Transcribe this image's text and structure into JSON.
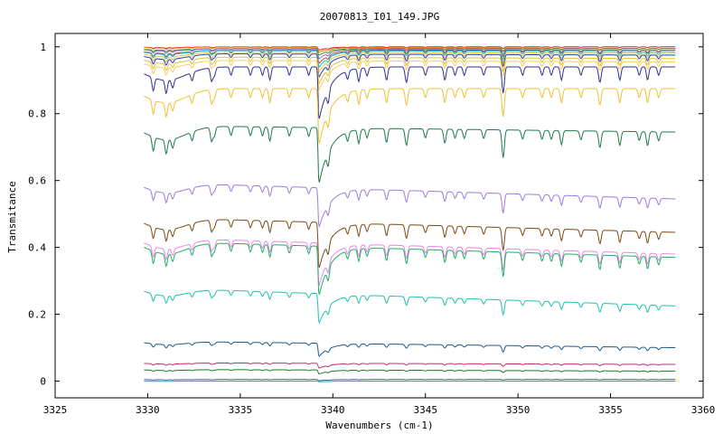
{
  "chart_data": {
    "type": "line",
    "title": "20070813_I01_149.JPG",
    "xlabel": "Wavenumbers (cm-1)",
    "ylabel": "Transmitance",
    "xlim": [
      3325,
      3360
    ],
    "ylim": [
      -0.05,
      1.04
    ],
    "xticks": [
      "3325",
      "3330",
      "3335",
      "3340",
      "3345",
      "3350",
      "3355",
      "3360"
    ],
    "yticks": [
      "0",
      "0.2",
      "0.4",
      "0.6",
      "0.8",
      "1"
    ],
    "grid": false,
    "x_range_data": [
      3329.8,
      3358.5
    ],
    "series": [
      {
        "color": "#d62728",
        "start": 1.0,
        "end": 1.0,
        "dip": 0.01
      },
      {
        "color": "#ff7f0e",
        "start": 1.0,
        "end": 0.995,
        "dip": 0.015
      },
      {
        "color": "#2ca02c",
        "start": 0.995,
        "end": 0.995,
        "dip": 0.02
      },
      {
        "color": "#9467bd",
        "start": 0.995,
        "end": 0.99,
        "dip": 0.03
      },
      {
        "color": "#8c564b",
        "start": 0.99,
        "end": 0.99,
        "dip": 0.04
      },
      {
        "color": "#17becf",
        "start": 0.99,
        "end": 0.985,
        "dip": 0.05
      },
      {
        "color": "#f0c040",
        "start": 0.985,
        "end": 0.98,
        "dip": 0.06
      },
      {
        "color": "#2040c0",
        "start": 0.98,
        "end": 0.975,
        "dip": 0.07
      },
      {
        "color": "#e8c030",
        "start": 0.97,
        "end": 0.965,
        "dip": 0.08
      },
      {
        "color": "#f5d060",
        "start": 0.96,
        "end": 0.955,
        "dip": 0.09
      },
      {
        "color": "#303090",
        "start": 0.94,
        "end": 0.94,
        "dip": 0.16
      },
      {
        "color": "#f0c030",
        "start": 0.875,
        "end": 0.875,
        "dip": 0.17
      },
      {
        "color": "#1a7a4a",
        "start": 0.765,
        "end": 0.745,
        "dip": 0.17
      },
      {
        "color": "#9b7ae0",
        "start": 0.595,
        "end": 0.545,
        "dip": 0.12
      },
      {
        "color": "#7a4a10",
        "start": 0.49,
        "end": 0.445,
        "dip": 0.14
      },
      {
        "color": "#ee82ee",
        "start": 0.43,
        "end": 0.38,
        "dip": 0.13
      },
      {
        "color": "#20b060",
        "start": 0.42,
        "end": 0.37,
        "dip": 0.15
      },
      {
        "color": "#20c0b0",
        "start": 0.28,
        "end": 0.225,
        "dip": 0.09
      },
      {
        "color": "#1a5a8a",
        "start": 0.12,
        "end": 0.1,
        "dip": 0.04
      },
      {
        "color": "#c03070",
        "start": 0.055,
        "end": 0.05,
        "dip": 0.015
      },
      {
        "color": "#1a7a2a",
        "start": 0.035,
        "end": 0.03,
        "dip": 0.012
      },
      {
        "color": "#3060c0",
        "start": 0.005,
        "end": 0.005,
        "dip": 0.004
      },
      {
        "color": "#20b0a0",
        "start": 0.0,
        "end": 0.0,
        "dip": 0.002
      }
    ]
  }
}
